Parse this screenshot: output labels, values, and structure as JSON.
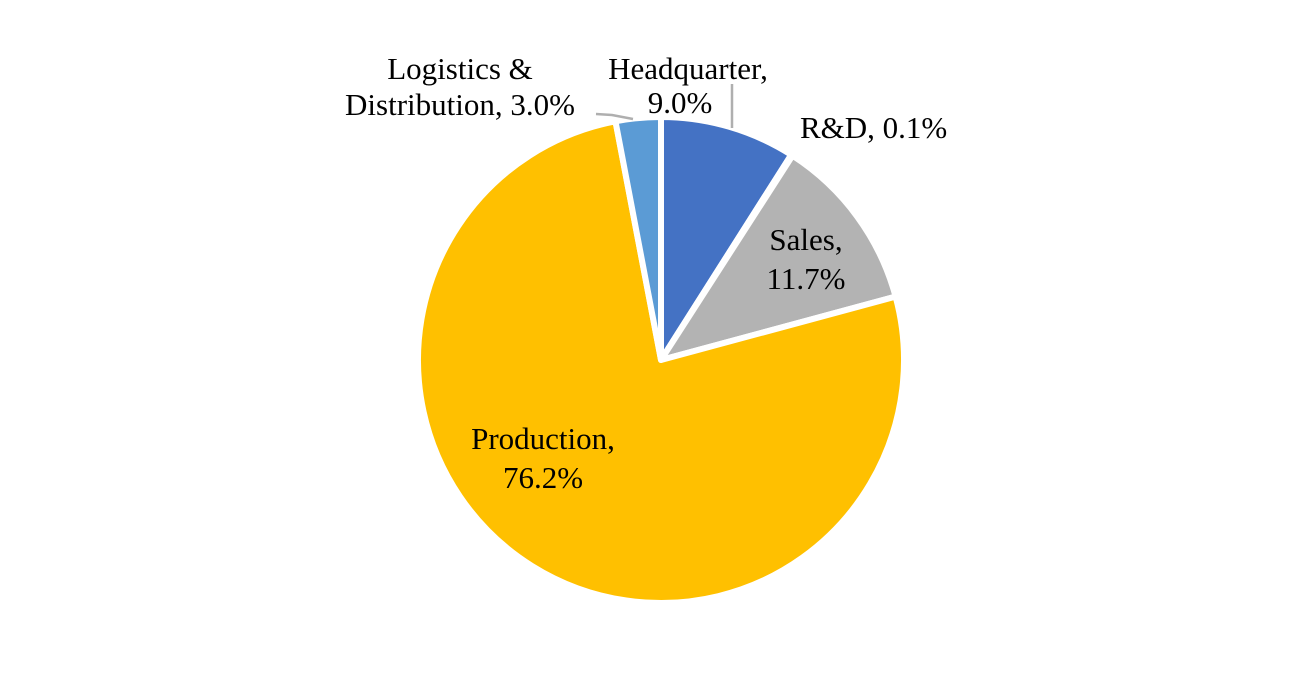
{
  "chart_data": {
    "type": "pie",
    "title": "",
    "start_angle_deg": 0,
    "direction": "clockwise",
    "slices": [
      {
        "label": "Headquarter",
        "value": 9.0,
        "display": "9.0%",
        "color": "#4472C4"
      },
      {
        "label": "R&D",
        "value": 0.1,
        "display": "0.1%",
        "color": "#ED7D31"
      },
      {
        "label": "Sales",
        "value": 11.7,
        "display": "11.7%",
        "color": "#B3B3B3"
      },
      {
        "label": "Production",
        "value": 76.2,
        "display": "76.2%",
        "color": "#FFC000"
      },
      {
        "label": "Logistics & Distribution",
        "value": 3.0,
        "display": "3.0%",
        "color": "#5B9BD5"
      }
    ],
    "data_labels": {
      "headquarter": [
        "Headquarter,",
        "9.0%"
      ],
      "rd": "R&D, 0.1%",
      "sales": [
        "Sales,",
        "11.7%"
      ],
      "production": [
        "Production,",
        "76.2%"
      ],
      "logistics": [
        "Logistics &",
        "Distribution, 3.0%"
      ]
    },
    "legend": "none"
  }
}
